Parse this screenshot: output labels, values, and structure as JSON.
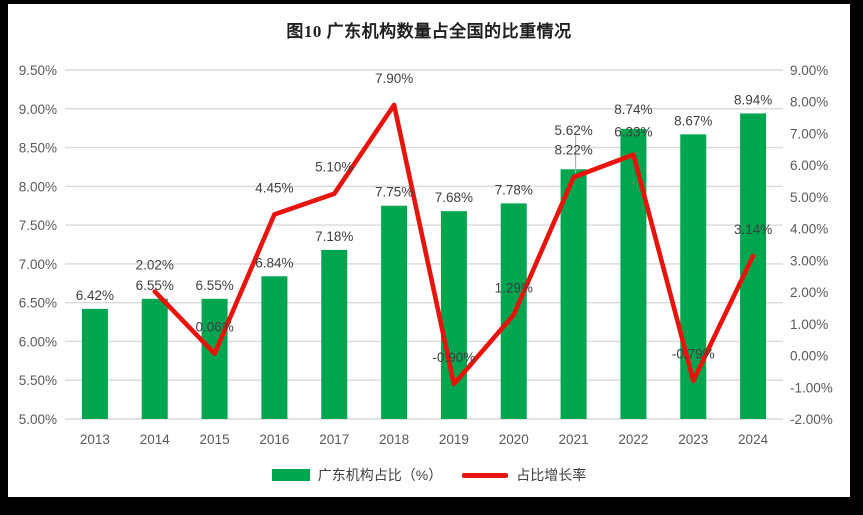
{
  "window": {
    "background": "#000000",
    "chart_background": "#ffffff"
  },
  "chart_data": {
    "type": "combo",
    "title": "图10  广东机构数量占全国的比重情况",
    "categories": [
      "2013",
      "2014",
      "2015",
      "2016",
      "2017",
      "2018",
      "2019",
      "2020",
      "2021",
      "2022",
      "2023",
      "2024"
    ],
    "series": [
      {
        "name": "广东机构占比（%）",
        "type": "bar",
        "axis": "left",
        "color": "#00a550",
        "values": [
          6.42,
          6.55,
          6.55,
          6.84,
          7.18,
          7.75,
          7.68,
          7.78,
          8.22,
          8.74,
          8.67,
          8.94
        ],
        "labels": [
          "6.42%",
          "6.55%",
          "6.55%",
          "6.84%",
          "7.18%",
          "7.75%",
          "7.68%",
          "7.78%",
          "8.22%",
          "8.74%",
          "8.67%",
          "8.94%"
        ]
      },
      {
        "name": "占比增长率",
        "type": "line",
        "axis": "right",
        "color": "#e8140c",
        "values": [
          null,
          2.02,
          0.06,
          4.45,
          5.1,
          7.9,
          -0.9,
          1.29,
          5.62,
          6.33,
          -0.79,
          3.14
        ],
        "labels": [
          null,
          "2.02%",
          "0.06%",
          "4.45%",
          "5.10%",
          "7.90%",
          "-0.90%",
          "1.29%",
          "5.62%",
          "6.33%",
          "-0.79%",
          "3.14%"
        ]
      }
    ],
    "left_axis": {
      "min": 5.0,
      "max": 9.5,
      "step": 0.5,
      "tick_labels": [
        "9.50%",
        "9.00%",
        "8.50%",
        "8.00%",
        "7.50%",
        "7.00%",
        "6.50%",
        "6.00%",
        "5.50%",
        "5.00%"
      ]
    },
    "right_axis": {
      "min": -2.0,
      "max": 9.0,
      "step": 1.0,
      "tick_labels": [
        "9.00%",
        "8.00%",
        "7.00%",
        "6.00%",
        "5.00%",
        "4.00%",
        "3.00%",
        "2.00%",
        "1.00%",
        "0.00%",
        "-1.00%",
        "-2.00%"
      ]
    },
    "grid": true,
    "legend_position": "bottom",
    "colors": {
      "gridline": "#d9d9d9",
      "axis_text": "#595959",
      "data_label_text": "#3f3f3f",
      "leader_line": "#b0b0b0"
    }
  },
  "legend": {
    "bar_label": "广东机构占比（%）",
    "line_label": "占比增长率"
  }
}
